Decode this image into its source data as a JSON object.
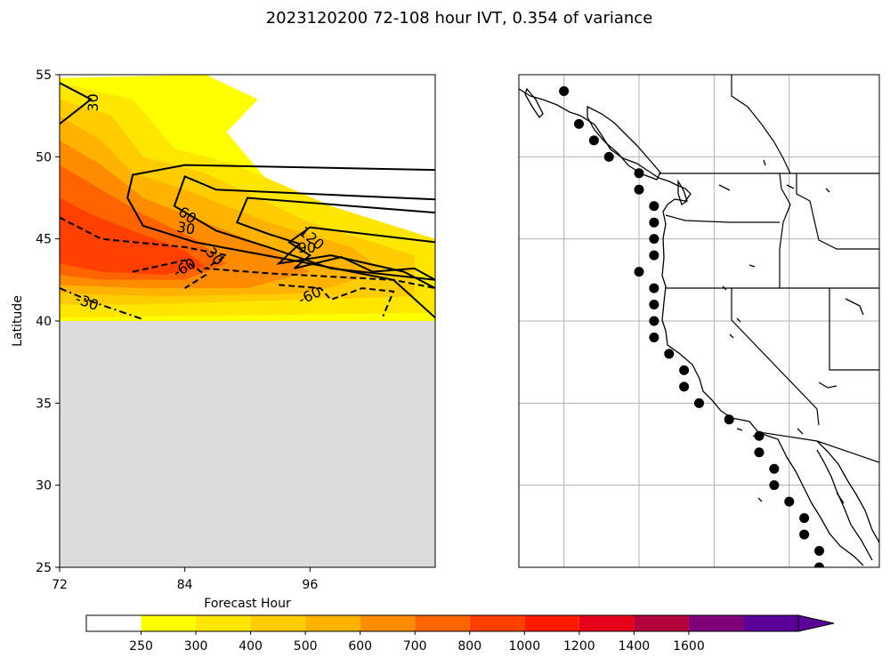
{
  "figure": {
    "title": "2023120200 72-108 hour IVT, 0.354 of variance"
  },
  "chart_data": [
    {
      "type": "contour",
      "panel": "left",
      "xlabel": "Forecast Hour",
      "ylabel": "Latitude",
      "xlim": [
        72,
        108
      ],
      "ylim": [
        25,
        55
      ],
      "xticks": [
        72,
        84,
        96
      ],
      "yticks": [
        25,
        30,
        35,
        40,
        45,
        50,
        55
      ],
      "no_data_region": {
        "lat_min": 25,
        "lat_max": 40,
        "color": "#dcdcdc"
      },
      "filled_levels": [
        250,
        300,
        400,
        500,
        600,
        700,
        800,
        1000,
        1200,
        1400,
        1600
      ],
      "fill_colors": [
        "#ffff00",
        "#ffe600",
        "#ffcc00",
        "#ffb300",
        "#ff8c00",
        "#ff6400",
        "#ff4000",
        "#ff1a00",
        "#e6001a",
        "#b3003c",
        "#80007a",
        "#5a0099"
      ],
      "filled_regions": [
        {
          "level": 250,
          "outline": [
            [
              72,
              54.8
            ],
            [
              86,
              55
            ],
            [
              91,
              53.5
            ],
            [
              88,
              51.5
            ],
            [
              92,
              48.5
            ],
            [
              98,
              47
            ],
            [
              108,
              44.5
            ],
            [
              108,
              40
            ],
            [
              72,
              40
            ]
          ]
        },
        {
          "level": 300,
          "outline": [
            [
              72,
              54.5
            ],
            [
              79,
              53.5
            ],
            [
              83,
              50.5
            ],
            [
              89,
              49.5
            ],
            [
              98,
              47
            ],
            [
              108,
              45
            ],
            [
              108,
              40.5
            ],
            [
              72,
              40.2
            ]
          ]
        },
        {
          "level": 400,
          "outline": [
            [
              72,
              53.5
            ],
            [
              77,
              52.5
            ],
            [
              80,
              50
            ],
            [
              86,
              49
            ],
            [
              96,
              46
            ],
            [
              106,
              44
            ],
            [
              106,
              41.5
            ],
            [
              95,
              41.3
            ],
            [
              80,
              41
            ],
            [
              72,
              41
            ]
          ]
        },
        {
          "level": 500,
          "outline": [
            [
              72,
              52.5
            ],
            [
              76,
              51
            ],
            [
              79,
              49
            ],
            [
              84,
              48
            ],
            [
              92,
              46
            ],
            [
              100,
              44.5
            ],
            [
              103,
              43
            ],
            [
              96,
              41.7
            ],
            [
              82,
              41.5
            ],
            [
              72,
              41.7
            ]
          ]
        },
        {
          "level": 600,
          "outline": [
            [
              72,
              51
            ],
            [
              76,
              49.5
            ],
            [
              80,
              47.5
            ],
            [
              86,
              46
            ],
            [
              92,
              44.5
            ],
            [
              96,
              43
            ],
            [
              90,
              42
            ],
            [
              80,
              42
            ],
            [
              72,
              42.2
            ]
          ]
        },
        {
          "level": 700,
          "outline": [
            [
              72,
              49.5
            ],
            [
              76,
              48
            ],
            [
              80,
              46.5
            ],
            [
              85,
              45
            ],
            [
              88,
              43.5
            ],
            [
              84,
              42.5
            ],
            [
              76,
              42.5
            ],
            [
              72,
              42.8
            ]
          ]
        },
        {
          "level": 800,
          "outline": [
            [
              72,
              47.5
            ],
            [
              75,
              46.5
            ],
            [
              79,
              45.5
            ],
            [
              84,
              44.3
            ],
            [
              86,
              43.3
            ],
            [
              82,
              42.8
            ],
            [
              76,
              43
            ],
            [
              72,
              43.5
            ]
          ]
        }
      ],
      "contour_lines": [
        {
          "level": "30",
          "style": "solid",
          "points": [
            [
              72,
              54.5
            ],
            [
              75,
              53.5
            ],
            [
              72,
              52
            ]
          ]
        },
        {
          "level": "30",
          "style": "solid",
          "points": [
            [
              108,
              49.2
            ],
            [
              84,
              49.5
            ],
            [
              79,
              48.9
            ],
            [
              78.5,
              47.5
            ],
            [
              80,
              45.8
            ],
            [
              85,
              44.8
            ],
            [
              90,
              44.2
            ],
            [
              96,
              43.5
            ],
            [
              104,
              42.5
            ],
            [
              108,
              40.2
            ]
          ]
        },
        {
          "level": "60",
          "style": "solid",
          "points": [
            [
              108,
              47.4
            ],
            [
              87,
              48
            ],
            [
              84,
              48.8
            ],
            [
              83,
              47
            ],
            [
              87,
              45.5
            ],
            [
              92,
              44.5
            ],
            [
              98,
              43.2
            ],
            [
              108,
              42.5
            ]
          ]
        },
        {
          "level": "90",
          "style": "solid",
          "points": [
            [
              108,
              46.6
            ],
            [
              90,
              47.5
            ],
            [
              89,
              46
            ],
            [
              92,
              45.3
            ],
            [
              95,
              44.7
            ],
            [
              93,
              43.5
            ],
            [
              98,
              44
            ],
            [
              105,
              43
            ],
            [
              108,
              42
            ]
          ]
        },
        {
          "level": "120",
          "style": "solid",
          "points": [
            [
              108,
              44.8
            ],
            [
              96,
              45.7
            ],
            [
              94,
              44.8
            ],
            [
              96,
              44
            ],
            [
              94.5,
              43.2
            ],
            [
              99,
              43.9
            ],
            [
              102,
              43
            ],
            [
              106,
              43.2
            ],
            [
              108,
              42.5
            ]
          ]
        },
        {
          "level": "-30",
          "style": "dashed",
          "points": [
            [
              72,
              46.3
            ],
            [
              76,
              45
            ],
            [
              84,
              44.5
            ],
            [
              88,
              44
            ],
            [
              86,
              43.2
            ],
            [
              92,
              42.9
            ],
            [
              104,
              42.5
            ],
            [
              108,
              42
            ]
          ]
        },
        {
          "level": "-30",
          "style": "dashdot",
          "points": [
            [
              72,
              42
            ],
            [
              75,
              41.2
            ],
            [
              80,
              40.1
            ]
          ]
        },
        {
          "level": "-60",
          "style": "dashed",
          "points": [
            [
              79,
              43
            ],
            [
              84,
              43.7
            ],
            [
              86,
              42.8
            ],
            [
              84,
              42
            ]
          ]
        },
        {
          "level": "-60",
          "style": "dashed",
          "points": [
            [
              93,
              42.2
            ],
            [
              97,
              42
            ],
            [
              98,
              41.3
            ],
            [
              101,
              42
            ],
            [
              104,
              41.8
            ],
            [
              103,
              40.3
            ]
          ]
        }
      ],
      "contour_labels": [
        {
          "text": "30",
          "x": 75.3,
          "y": 53.3,
          "rotation": -90
        },
        {
          "text": "60",
          "x": 84.2,
          "y": 46.4,
          "rotation": 35
        },
        {
          "text": "30",
          "x": 84.1,
          "y": 45.6,
          "rotation": 10
        },
        {
          "text": "30",
          "x": 86.8,
          "y": 43.9,
          "rotation": 50
        },
        {
          "text": "-60",
          "x": 84.0,
          "y": 43.2,
          "rotation": -30
        },
        {
          "text": "120",
          "x": 96.1,
          "y": 45.0,
          "rotation": 40
        },
        {
          "text": "90",
          "x": 95.7,
          "y": 44.4,
          "rotation": 0
        },
        {
          "text": "-60",
          "x": 96.0,
          "y": 41.5,
          "rotation": -25
        },
        {
          "text": "-30",
          "x": 74.6,
          "y": 41.1,
          "rotation": 20
        }
      ]
    },
    {
      "type": "map",
      "panel": "right",
      "projection": "PlateCarree",
      "lon_range": [
        -132,
        -108
      ],
      "lat_range": [
        25,
        55
      ],
      "gridlines": {
        "lons": [
          -129,
          -124,
          -119,
          -114
        ],
        "lats": [
          30,
          35,
          40,
          45,
          50
        ]
      },
      "marker_points": [
        [
          -129.0,
          54.0
        ],
        [
          -128.0,
          52.0
        ],
        [
          -127.0,
          51.0
        ],
        [
          -126.0,
          50.0
        ],
        [
          -124.0,
          49.0
        ],
        [
          -124.0,
          48.0
        ],
        [
          -123.0,
          47.0
        ],
        [
          -123.0,
          46.0
        ],
        [
          -123.0,
          45.0
        ],
        [
          -123.0,
          44.0
        ],
        [
          -124.0,
          43.0
        ],
        [
          -123.0,
          42.0
        ],
        [
          -123.0,
          41.0
        ],
        [
          -123.0,
          40.0
        ],
        [
          -123.0,
          39.0
        ],
        [
          -122.0,
          38.0
        ],
        [
          -121.0,
          37.0
        ],
        [
          -121.0,
          36.0
        ],
        [
          -120.0,
          35.0
        ],
        [
          -118.0,
          34.0
        ],
        [
          -116.0,
          33.0
        ],
        [
          -116.0,
          32.0
        ],
        [
          -115.0,
          31.0
        ],
        [
          -115.0,
          30.0
        ],
        [
          -114.0,
          29.0
        ],
        [
          -113.0,
          28.0
        ],
        [
          -113.0,
          27.0
        ],
        [
          -112.0,
          26.0
        ],
        [
          -112.0,
          25.0
        ]
      ]
    }
  ],
  "colorbar": {
    "type": "colorbar",
    "extend": "max",
    "tick_labels": [
      "250",
      "300",
      "400",
      "500",
      "600",
      "700",
      "800",
      "1000",
      "1200",
      "1400",
      "1600"
    ],
    "colors": [
      "#ffffff",
      "#ffff00",
      "#ffe600",
      "#ffcc00",
      "#ffb300",
      "#ff8c00",
      "#ff6400",
      "#ff4000",
      "#ff1a00",
      "#e6001a",
      "#b3003c",
      "#80007a",
      "#5a0099"
    ]
  }
}
